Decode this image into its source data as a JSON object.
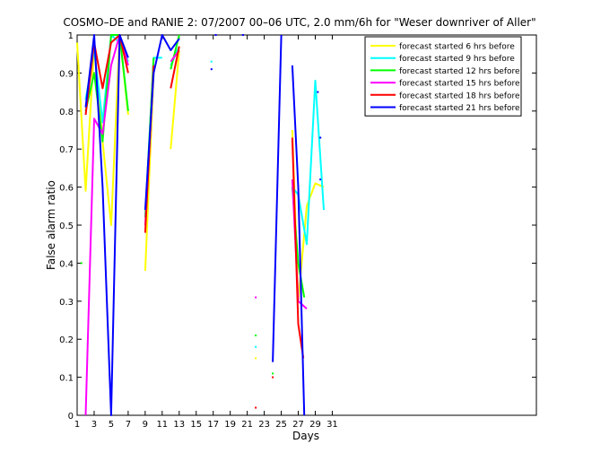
{
  "chart_data": {
    "type": "line",
    "title": "COSMO–DE and RANIE 2: 07/2007 00–06 UTC, 2.0 mm/6h for \"Weser downriver of Aller\"",
    "xlabel": "Days",
    "ylabel": "False alarm ratio",
    "xlim": [
      1,
      55
    ],
    "ylim": [
      0,
      1
    ],
    "x_ticks": [
      1,
      3,
      5,
      7,
      9,
      11,
      13,
      15,
      17,
      19,
      21,
      23,
      25,
      27,
      29,
      31
    ],
    "x_tick_labels": [
      "1",
      "3",
      "5",
      "7",
      "9",
      "11",
      "13",
      "15",
      "17",
      "19",
      "21",
      "23",
      "25",
      "27",
      "29",
      "31"
    ],
    "y_ticks": [
      0,
      0.1,
      0.2,
      0.3,
      0.4,
      0.5,
      0.6,
      0.7,
      0.8,
      0.9,
      1
    ],
    "y_tick_labels": [
      "0",
      "0.1",
      "0.2",
      "0.3",
      "0.4",
      "0.5",
      "0.6",
      "0.7",
      "0.8",
      "0.9",
      "1"
    ],
    "grid": false,
    "legend_position": "top-right",
    "series": [
      {
        "name": "forecast started 6 hrs before",
        "color": "#ffff00",
        "segments": [
          [
            [
              1,
              0.98
            ],
            [
              2,
              0.59
            ],
            [
              3,
              0.97
            ],
            [
              4,
              0.72
            ],
            [
              5,
              0.5
            ],
            [
              6,
              1.0
            ],
            [
              7,
              0.79
            ]
          ],
          [
            [
              9,
              0.38
            ],
            [
              10,
              0.9
            ]
          ],
          [
            [
              12,
              0.7
            ],
            [
              13,
              0.96
            ]
          ],
          [
            [
              22,
              0.15
            ]
          ],
          [
            [
              26.3,
              0.75
            ],
            [
              27,
              0.3
            ],
            [
              28,
              0.55
            ],
            [
              29,
              0.61
            ],
            [
              30,
              0.6
            ]
          ]
        ]
      },
      {
        "name": "forecast started 9 hrs before",
        "color": "#00ffff",
        "segments": [
          [
            [
              2,
              0.83
            ],
            [
              3,
              0.96
            ],
            [
              4,
              0.77
            ],
            [
              5,
              1.0
            ],
            [
              6,
              0.98
            ],
            [
              7,
              0.93
            ]
          ],
          [
            [
              9,
              0.52
            ],
            [
              10,
              0.94
            ],
            [
              11,
              0.94
            ]
          ],
          [
            [
              12,
              0.92
            ],
            [
              13,
              0.97
            ]
          ],
          [
            [
              16.8,
              0.93
            ]
          ],
          [
            [
              22,
              0.18
            ]
          ],
          [
            [
              26.3,
              0.6
            ],
            [
              27,
              0.58
            ],
            [
              28,
              0.45
            ],
            [
              29,
              0.88
            ],
            [
              30,
              0.54
            ]
          ]
        ]
      },
      {
        "name": "forecast started 12 hrs before",
        "color": "#00ff00",
        "segments": [
          [
            [
              1.5,
              0.4
            ]
          ],
          [
            [
              2,
              0.8
            ],
            [
              3,
              0.9
            ],
            [
              4,
              0.72
            ],
            [
              5,
              1.0
            ],
            [
              6,
              1.0
            ],
            [
              7,
              0.8
            ]
          ],
          [
            [
              9,
              0.52
            ],
            [
              10,
              0.94
            ]
          ],
          [
            [
              12,
              0.91
            ],
            [
              13,
              1.0
            ]
          ],
          [
            [
              22,
              0.21
            ]
          ],
          [
            [
              24,
              0.11
            ]
          ],
          [
            [
              26.3,
              0.6
            ],
            [
              27,
              0.4
            ],
            [
              27.7,
              0.31
            ]
          ]
        ]
      },
      {
        "name": "forecast started 15 hrs before",
        "color": "#ff00ff",
        "segments": [
          [
            [
              2,
              0.0
            ],
            [
              3,
              0.78
            ],
            [
              4,
              0.74
            ],
            [
              5,
              0.92
            ],
            [
              6,
              1.0
            ],
            [
              7,
              0.92
            ]
          ],
          [
            [
              9,
              0.5
            ],
            [
              10,
              0.91
            ]
          ],
          [
            [
              12,
              0.93
            ],
            [
              13,
              0.96
            ]
          ],
          [
            [
              22,
              0.31
            ]
          ],
          [
            [
              26.3,
              0.62
            ],
            [
              27,
              0.3
            ],
            [
              28,
              0.28
            ]
          ]
        ]
      },
      {
        "name": "forecast started 18 hrs before",
        "color": "#ff0000",
        "segments": [
          [
            [
              2,
              0.79
            ],
            [
              3,
              0.98
            ],
            [
              4,
              0.86
            ],
            [
              5,
              0.98
            ],
            [
              6,
              1.0
            ],
            [
              7,
              0.9
            ]
          ],
          [
            [
              9,
              0.48
            ],
            [
              10,
              0.92
            ]
          ],
          [
            [
              12,
              0.86
            ],
            [
              13,
              0.97
            ]
          ],
          [
            [
              22,
              0.02
            ]
          ],
          [
            [
              24,
              0.1
            ]
          ],
          [
            [
              26.3,
              0.73
            ],
            [
              27,
              0.24
            ],
            [
              27.6,
              0.15
            ]
          ]
        ]
      },
      {
        "name": "forecast started 21 hrs before",
        "color": "#0000ff",
        "segments": [
          [
            [
              2,
              0.81
            ],
            [
              3,
              1.0
            ],
            [
              4,
              0.6
            ],
            [
              5,
              0.0
            ],
            [
              6,
              1.0
            ],
            [
              7,
              0.94
            ]
          ],
          [
            [
              9,
              0.54
            ],
            [
              10,
              0.9
            ],
            [
              11,
              1.0
            ],
            [
              12,
              0.96
            ],
            [
              13,
              0.99
            ]
          ],
          [
            [
              16.8,
              0.91
            ]
          ],
          [
            [
              17.3,
              1.0
            ]
          ],
          [
            [
              20.5,
              1.0
            ]
          ],
          [
            [
              24,
              0.14
            ],
            [
              25,
              1.0
            ]
          ],
          [
            [
              26.3,
              0.92
            ],
            [
              27,
              0.6
            ],
            [
              27.7,
              0.0
            ]
          ],
          [
            [
              29.3,
              0.85
            ]
          ],
          [
            [
              29.6,
              0.73
            ]
          ],
          [
            [
              29.6,
              0.62
            ]
          ]
        ]
      }
    ]
  }
}
